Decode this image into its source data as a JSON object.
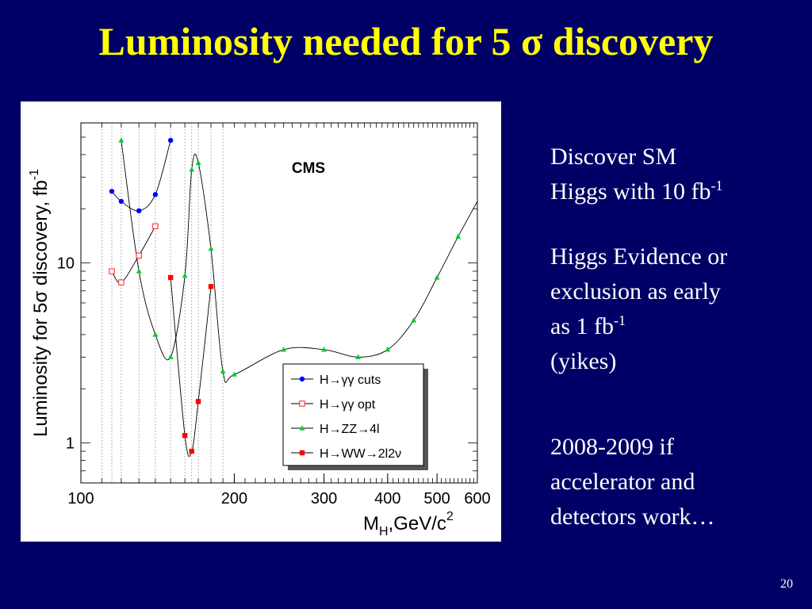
{
  "slide": {
    "title": "Luminosity needed for 5 σ discovery",
    "page_number": "20",
    "bullets": {
      "b1_line1": "Discover SM",
      "b1_line2": "Higgs with 10 fb",
      "b1_sup": "-1",
      "b2_line1": "Higgs Evidence or",
      "b2_line2": "exclusion as early",
      "b2_line3": "as 1 fb",
      "b2_sup": "-1",
      "b2_line4": "(yikes)",
      "b3_line1": "2008-2009 if",
      "b3_line2": "accelerator and",
      "b3_line3": "detectors work…"
    }
  },
  "chart_data": {
    "type": "line",
    "title": "CMS",
    "xlabel": "M_H, GeV/c^2",
    "ylabel": "Luminosity for 5σ discovery, fb^-1",
    "x_scale": "log",
    "y_scale": "log",
    "xlim": [
      100,
      600
    ],
    "ylim": [
      0.6,
      60
    ],
    "x_ticks": [
      {
        "value": 100,
        "label": "100"
      },
      {
        "value": 200,
        "label": "200"
      },
      {
        "value": 300,
        "label": "300"
      },
      {
        "value": 400,
        "label": "400"
      },
      {
        "value": 500,
        "label": "500"
      },
      {
        "value": 600,
        "label": "600"
      }
    ],
    "y_ticks": [
      {
        "value": 1,
        "label": "1"
      },
      {
        "value": 10,
        "label": "10"
      }
    ],
    "vertical_dotted_lines": [
      110,
      115,
      120,
      130,
      140,
      150,
      160,
      165,
      170,
      180,
      190
    ],
    "legend_position": "bottom-right",
    "series": [
      {
        "name": "H→γγ cuts",
        "color": "#0000ff",
        "marker": "circle",
        "x": [
          115,
          120,
          130,
          140,
          150
        ],
        "y": [
          25,
          22,
          19.5,
          24,
          48
        ]
      },
      {
        "name": "H→γγ opt",
        "color": "#ff2222",
        "marker": "open-square",
        "x": [
          115,
          120,
          130,
          140
        ],
        "y": [
          9,
          7.8,
          11,
          16
        ]
      },
      {
        "name": "H→ZZ→4l",
        "color": "#00cc33",
        "marker": "triangle",
        "x": [
          120,
          130,
          140,
          150,
          160,
          165,
          170,
          180,
          190,
          200,
          250,
          300,
          350,
          400,
          450,
          500,
          550
        ],
        "y": [
          48,
          9,
          4.0,
          3.0,
          8.5,
          33,
          36,
          12,
          2.5,
          2.4,
          3.3,
          3.3,
          3.0,
          3.3,
          4.8,
          8.3,
          14
        ]
      },
      {
        "name": "H→WW→2l2ν",
        "color": "#ff0000",
        "marker": "square",
        "x": [
          150,
          160,
          165,
          170,
          180
        ],
        "y": [
          8.3,
          1.1,
          0.9,
          1.7,
          7.4
        ]
      }
    ]
  }
}
